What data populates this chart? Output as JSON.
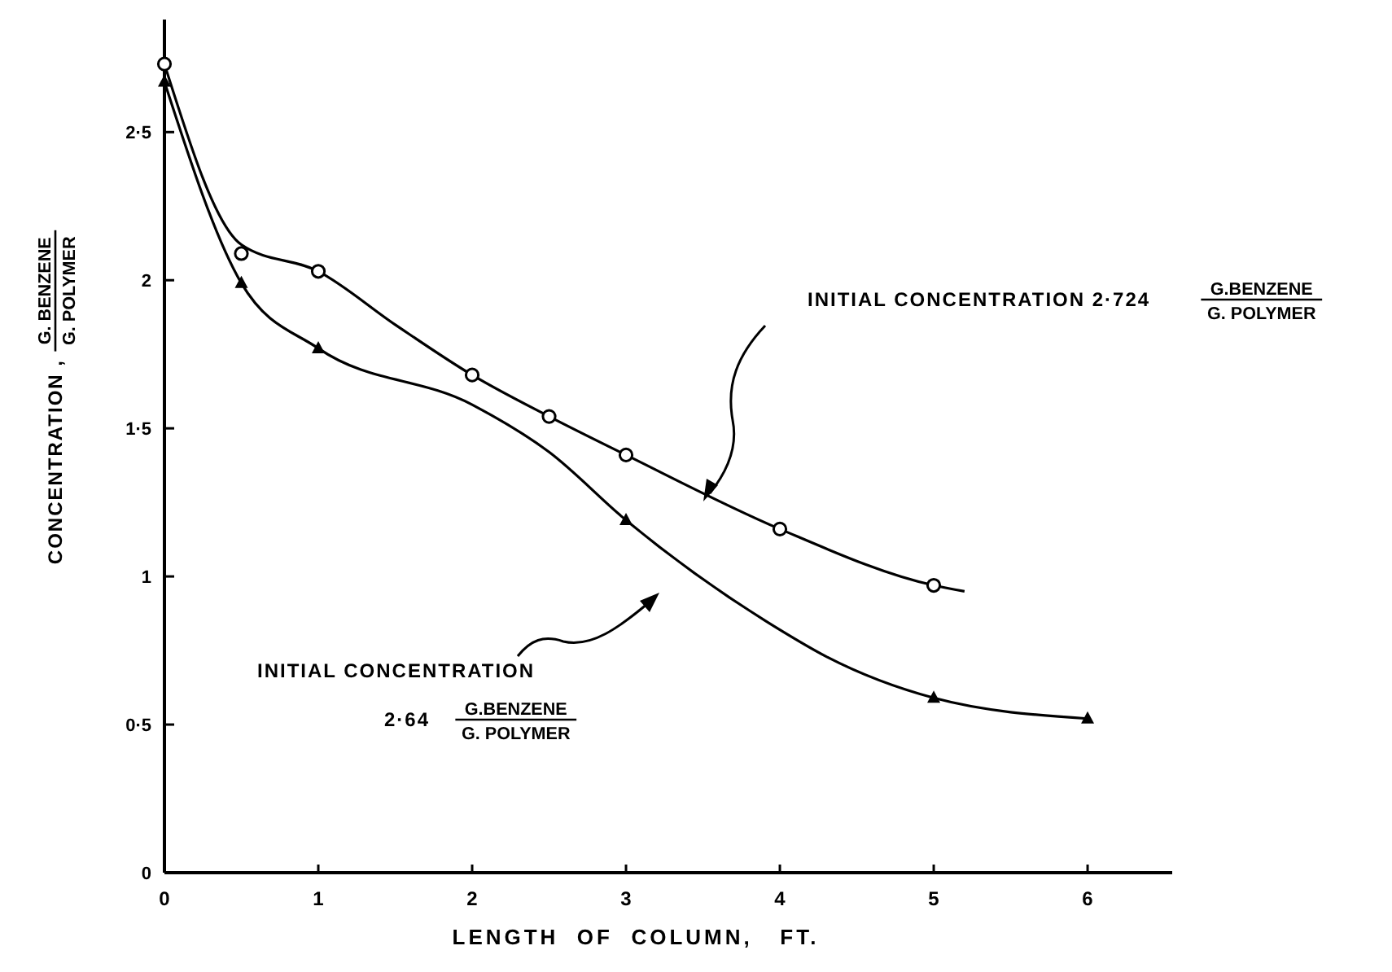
{
  "chart_data": {
    "type": "line",
    "xlabel": "LENGTH  OF  COLUMN,   FT.",
    "ylabel": "CONCENTRATION , G. BENZENE\nG. POLYMER",
    "xlim": [
      0,
      6.55
    ],
    "ylim": [
      0,
      2.88
    ],
    "xticks": [
      0,
      1,
      2,
      3,
      4,
      5,
      6
    ],
    "yticks": [
      0,
      {
        "value": 0.5,
        "label": "0·5"
      },
      1,
      {
        "value": 1.5,
        "label": "1·5"
      },
      2,
      {
        "value": 2.5,
        "label": "2·5"
      }
    ],
    "grid": false,
    "series": [
      {
        "color": "#000000",
        "marker": "none",
        "x": [
          0,
          0.5,
          1,
          1.5,
          2,
          2.5,
          3,
          4,
          5,
          5.2
        ],
        "values": [
          2.73,
          2.12,
          2.03,
          1.85,
          1.68,
          1.54,
          1.41,
          1.16,
          0.97,
          0.95
        ]
      },
      {
        "color": "#000000",
        "marker": "none",
        "x": [
          0,
          0.5,
          1,
          2,
          2.5,
          3,
          4,
          4.3,
          5,
          6
        ],
        "values": [
          2.67,
          1.99,
          1.77,
          1.58,
          1.42,
          1.19,
          0.82,
          0.73,
          0.59,
          0.52
        ]
      },
      {
        "type": "scatter",
        "color": "#000000",
        "marker": "circle",
        "x": [
          0,
          0.5,
          1,
          2,
          2.5,
          3,
          4,
          5
        ],
        "values": [
          2.73,
          2.09,
          2.03,
          1.68,
          1.54,
          1.41,
          1.16,
          0.97
        ]
      },
      {
        "type": "scatter",
        "color": "#000000",
        "marker": "triangle",
        "x": [
          0,
          0.5,
          1,
          3,
          5,
          6
        ],
        "values": [
          2.67,
          1.99,
          1.77,
          1.19,
          0.59,
          0.52
        ]
      }
    ],
    "annotations": [
      "INITIAL  CONCENTRATION  2·724 G.BENZENE\nG. POLYMER",
      "INITIAL CONCENTRATION\n2·64 G.BENZENE\nG. POLYMER"
    ]
  }
}
